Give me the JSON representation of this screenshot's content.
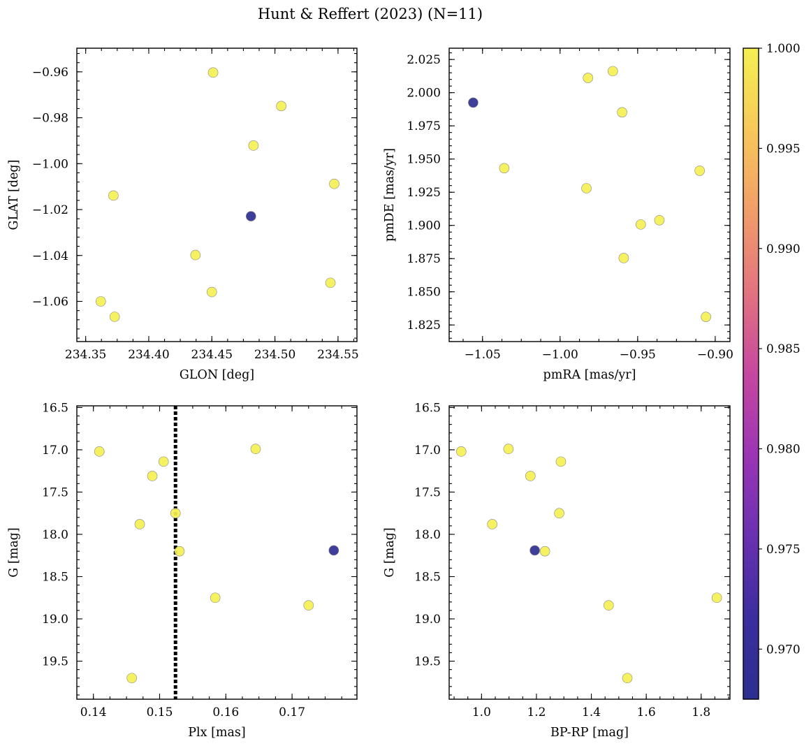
{
  "chart_data": {
    "title": "Hunt & Reffert (2023) (N=11)",
    "colorbar": {
      "vmin": 0.9675,
      "vmax": 1.0,
      "ticks": [
        0.97,
        0.975,
        0.98,
        0.985,
        0.99,
        0.995,
        1.0
      ],
      "tick_labels": [
        "0.970",
        "0.975",
        "0.980",
        "0.985",
        "0.990",
        "0.995",
        "1.000"
      ],
      "colormap": "plasma",
      "colors": [
        "#2c2f8f",
        "#3b2d9e",
        "#6931b0",
        "#9b35b5",
        "#c6479f",
        "#e2737f",
        "#f19d69",
        "#f7c85a",
        "#f4f052"
      ]
    },
    "panels": [
      {
        "type": "scatter",
        "xlabel": "GLON [deg]",
        "ylabel": "GLAT [deg]",
        "xlim": [
          234.343,
          234.565
        ],
        "ylim": [
          -1.0775,
          -0.9497
        ],
        "y_inverted": false,
        "xticks": [
          234.35,
          234.4,
          234.45,
          234.5,
          234.55
        ],
        "xtick_labels": [
          "234.35",
          "234.40",
          "234.45",
          "234.50",
          "234.55"
        ],
        "yticks": [
          -0.96,
          -0.98,
          -1.0,
          -1.02,
          -1.04,
          -1.06
        ],
        "ytick_labels": [
          "−0.96",
          "−0.98",
          "−1.00",
          "−1.02",
          "−1.04",
          "−1.06"
        ],
        "x": [
          234.451,
          234.505,
          234.483,
          234.372,
          234.547,
          234.481,
          234.437,
          234.45,
          234.544,
          234.362,
          234.373
        ],
        "y": [
          -0.9603,
          -0.9749,
          -0.9921,
          -1.0139,
          -1.0088,
          -1.0229,
          -1.0398,
          -1.0559,
          -1.0519,
          -1.06,
          -1.0667
        ],
        "c": [
          1,
          1,
          1,
          1,
          1,
          0.9675,
          1,
          1,
          1,
          1,
          1
        ]
      },
      {
        "type": "scatter",
        "xlabel": "pmRA [mas/yr]",
        "ylabel": "pmDE [mas/yr]",
        "xlim": [
          -1.0715,
          -0.8905
        ],
        "ylim": [
          1.8125,
          2.0335
        ],
        "y_inverted": false,
        "xticks": [
          -1.05,
          -1.0,
          -0.95,
          -0.9
        ],
        "xtick_labels": [
          "−1.05",
          "−1.00",
          "−0.95",
          "−0.90"
        ],
        "yticks": [
          1.825,
          1.85,
          1.875,
          1.9,
          1.925,
          1.95,
          1.975,
          2.0,
          2.025
        ],
        "ytick_labels": [
          "1.825",
          "1.850",
          "1.875",
          "1.900",
          "1.925",
          "1.950",
          "1.975",
          "2.000",
          "2.025"
        ],
        "x": [
          -1.056,
          -0.982,
          -0.966,
          -0.96,
          -1.036,
          -0.983,
          -0.91,
          -0.948,
          -0.936,
          -0.959,
          -0.906
        ],
        "y": [
          1.9925,
          2.0111,
          2.0162,
          1.9852,
          1.9431,
          1.928,
          1.9412,
          1.9007,
          1.9039,
          1.8754,
          1.8311
        ],
        "c": [
          0.9675,
          1,
          1,
          1,
          1,
          1,
          1,
          1,
          1,
          1,
          1
        ]
      },
      {
        "type": "scatter",
        "xlabel": "Plx [mas]",
        "ylabel": "G [mag]",
        "xlim": [
          0.1375,
          0.1798
        ],
        "ylim": [
          19.95,
          16.48
        ],
        "y_inverted": true,
        "xticks": [
          0.14,
          0.15,
          0.16,
          0.17
        ],
        "xtick_labels": [
          "0.14",
          "0.15",
          "0.16",
          "0.17"
        ],
        "yticks": [
          16.5,
          17.0,
          17.5,
          18.0,
          18.5,
          19.0,
          19.5
        ],
        "ytick_labels": [
          "16.5",
          "17.0",
          "17.5",
          "18.0",
          "18.5",
          "19.0",
          "19.5"
        ],
        "vline": 0.1524,
        "x": [
          0.1409,
          0.1645,
          0.1506,
          0.1489,
          0.147,
          0.1524,
          0.153,
          0.1763,
          0.1584,
          0.1725,
          0.1458
        ],
        "y": [
          17.02,
          16.99,
          17.14,
          17.31,
          17.88,
          17.75,
          18.2,
          18.19,
          18.75,
          18.84,
          19.7
        ],
        "c": [
          1,
          1,
          1,
          1,
          1,
          1,
          1,
          0.9675,
          1,
          1,
          1
        ]
      },
      {
        "type": "scatter",
        "xlabel": "BP-RP [mag]",
        "ylabel": "G [mag]",
        "xlim": [
          0.882,
          1.905
        ],
        "ylim": [
          19.95,
          16.48
        ],
        "y_inverted": true,
        "xticks": [
          1.0,
          1.2,
          1.4,
          1.6,
          1.8
        ],
        "xtick_labels": [
          "1.0",
          "1.2",
          "1.4",
          "1.6",
          "1.8"
        ],
        "yticks": [
          16.5,
          17.0,
          17.5,
          18.0,
          18.5,
          19.0,
          19.5
        ],
        "ytick_labels": [
          "16.5",
          "17.0",
          "17.5",
          "18.0",
          "18.5",
          "19.0",
          "19.5"
        ],
        "x": [
          0.926,
          1.098,
          1.289,
          1.178,
          1.039,
          1.283,
          1.194,
          1.231,
          1.463,
          1.857,
          1.531
        ],
        "y": [
          17.02,
          16.99,
          17.14,
          17.31,
          17.88,
          17.75,
          18.19,
          18.2,
          18.84,
          18.75,
          19.7
        ],
        "c": [
          1,
          1,
          1,
          1,
          1,
          1,
          0.9675,
          1,
          1,
          1,
          1
        ]
      }
    ]
  }
}
